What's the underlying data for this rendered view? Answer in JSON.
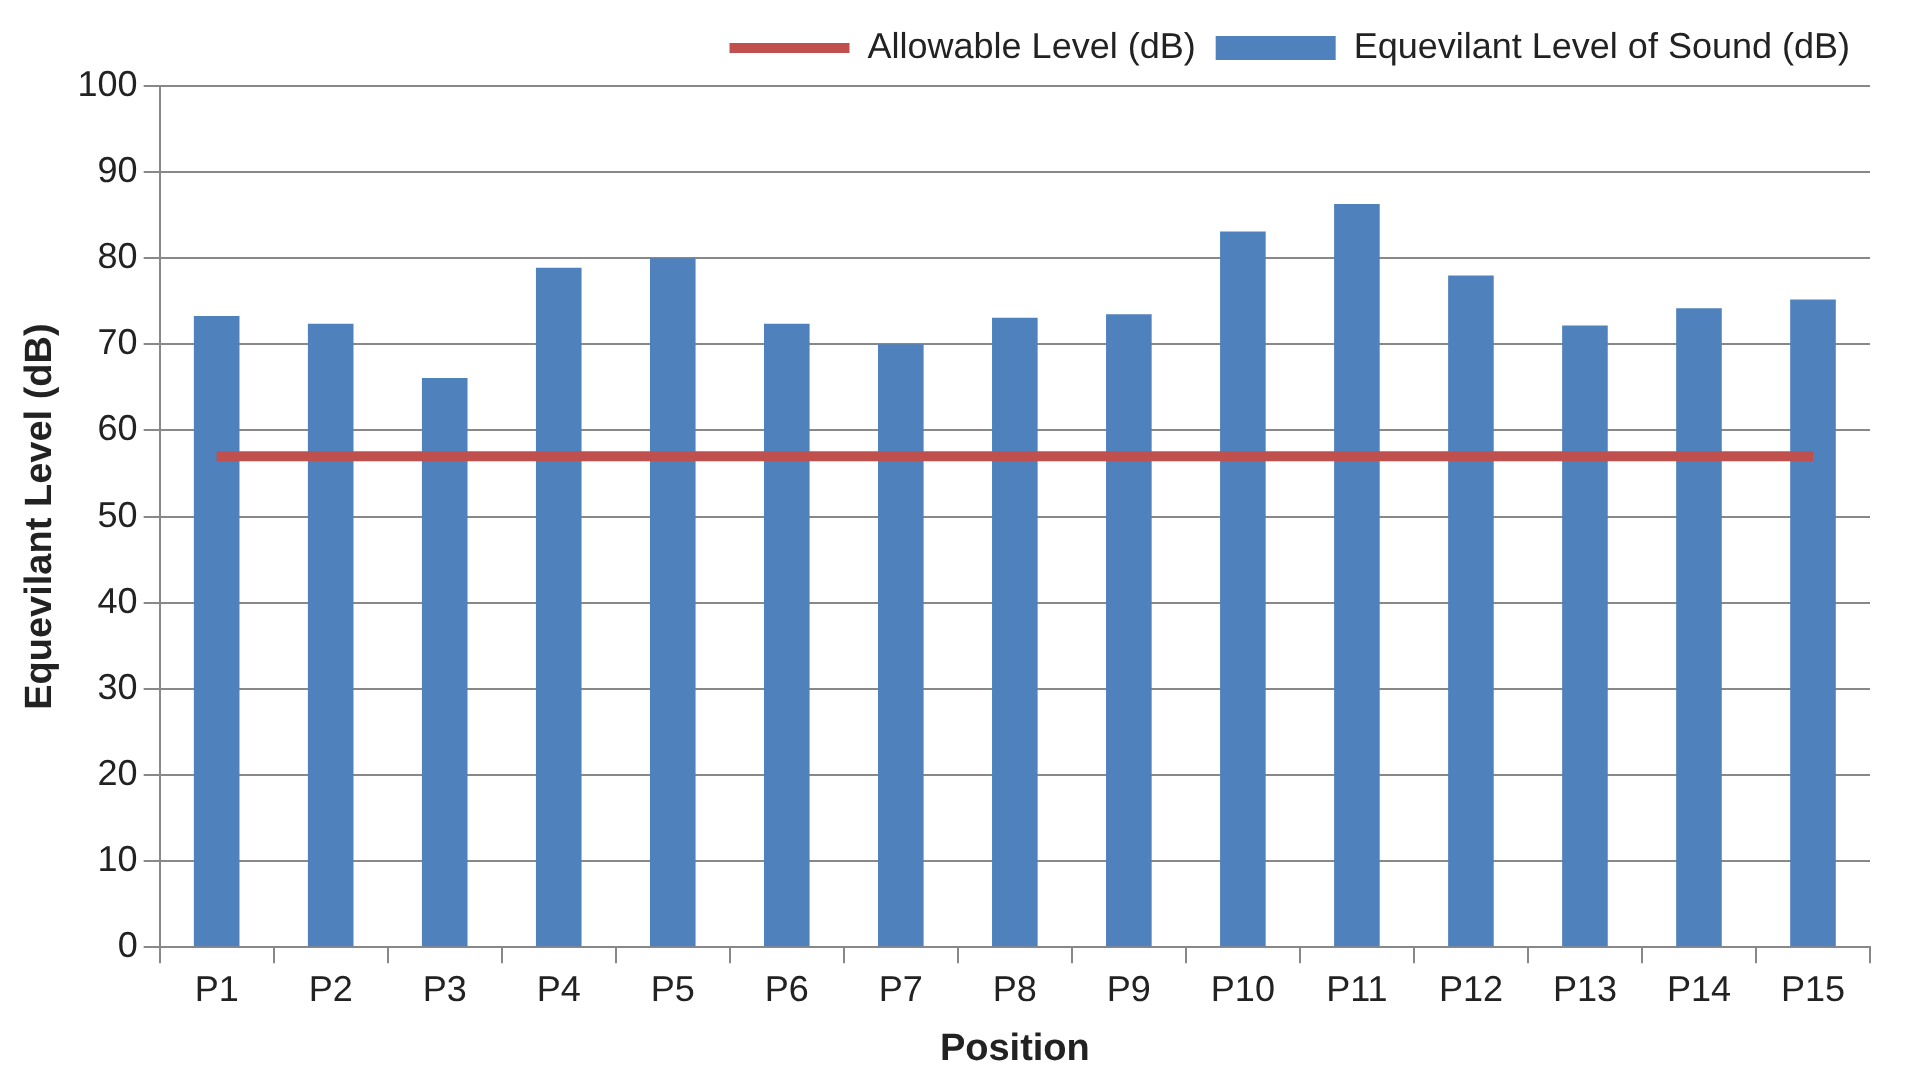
{
  "chart_data": {
    "type": "bar",
    "xlabel": "Position",
    "ylabel": "Equevilant Level (dB)",
    "categories": [
      "P1",
      "P2",
      "P3",
      "P4",
      "P5",
      "P6",
      "P7",
      "P8",
      "P9",
      "P10",
      "P11",
      "P12",
      "P13",
      "P14",
      "P15"
    ],
    "series": [
      {
        "name": "Equevilant Level of Sound (dB)",
        "color": "#4f81bd",
        "values": [
          73.3,
          72.4,
          66.1,
          78.9,
          80,
          72.4,
          70,
          73.1,
          73.5,
          83.1,
          86.3,
          78,
          72.2,
          74.2,
          75.2
        ]
      },
      {
        "name": "Allowable Level (dB)",
        "type": "line",
        "color": "#c0504d",
        "values": [
          57,
          57,
          57,
          57,
          57,
          57,
          57,
          57,
          57,
          57,
          57,
          57,
          57,
          57,
          57
        ]
      }
    ],
    "ylim": [
      0,
      100
    ],
    "yticks": [
      0,
      10,
      20,
      30,
      40,
      50,
      60,
      70,
      80,
      90,
      100
    ],
    "grid": "y",
    "legend": "top right",
    "marker": "none"
  }
}
